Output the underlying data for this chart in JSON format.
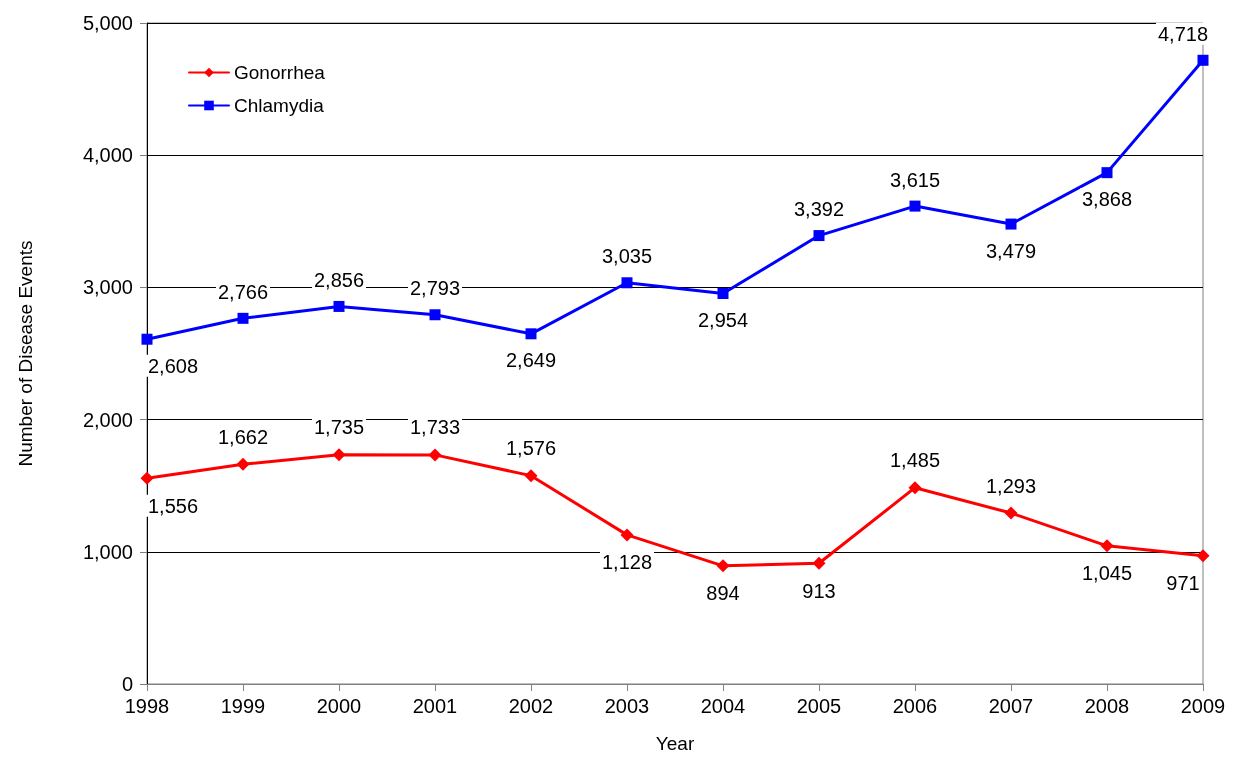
{
  "chart_data": {
    "type": "line",
    "xlabel": "Year",
    "ylabel": "Number of Disease Events",
    "categories": [
      "1998",
      "1999",
      "2000",
      "2001",
      "2002",
      "2003",
      "2004",
      "2005",
      "2006",
      "2007",
      "2008",
      "2009"
    ],
    "series": [
      {
        "name": "Gonorrhea",
        "color": "#ff0000",
        "marker": "diamond",
        "values": [
          1556,
          1662,
          1735,
          1733,
          1576,
          1128,
          894,
          913,
          1485,
          1293,
          1045,
          971
        ],
        "value_labels": [
          "1,556",
          "1,662",
          "1,735",
          "1,733",
          "1,576",
          "1,128",
          "894",
          "913",
          "1,485",
          "1,293",
          "1,045",
          "971"
        ]
      },
      {
        "name": "Chlamydia",
        "color": "#0000ff",
        "marker": "square",
        "values": [
          2608,
          2766,
          2856,
          2793,
          2649,
          3035,
          2954,
          3392,
          3615,
          3479,
          3868,
          4718
        ],
        "value_labels": [
          "2,608",
          "2,766",
          "2,856",
          "2,793",
          "2,649",
          "3,035",
          "2,954",
          "3,392",
          "3,615",
          "3,479",
          "3,868",
          "4,718"
        ]
      }
    ],
    "ylim": [
      0,
      5000
    ],
    "yticks": [
      0,
      {
        "value": 1000,
        "label": "1,000"
      },
      {
        "value": 2000,
        "label": "2,000"
      },
      {
        "value": 3000,
        "label": "3,000"
      },
      {
        "value": 4000,
        "label": "4,000"
      },
      {
        "value": 5000,
        "label": "5,000"
      }
    ],
    "grid": "y",
    "legend": "top left",
    "line_style": "solid"
  }
}
